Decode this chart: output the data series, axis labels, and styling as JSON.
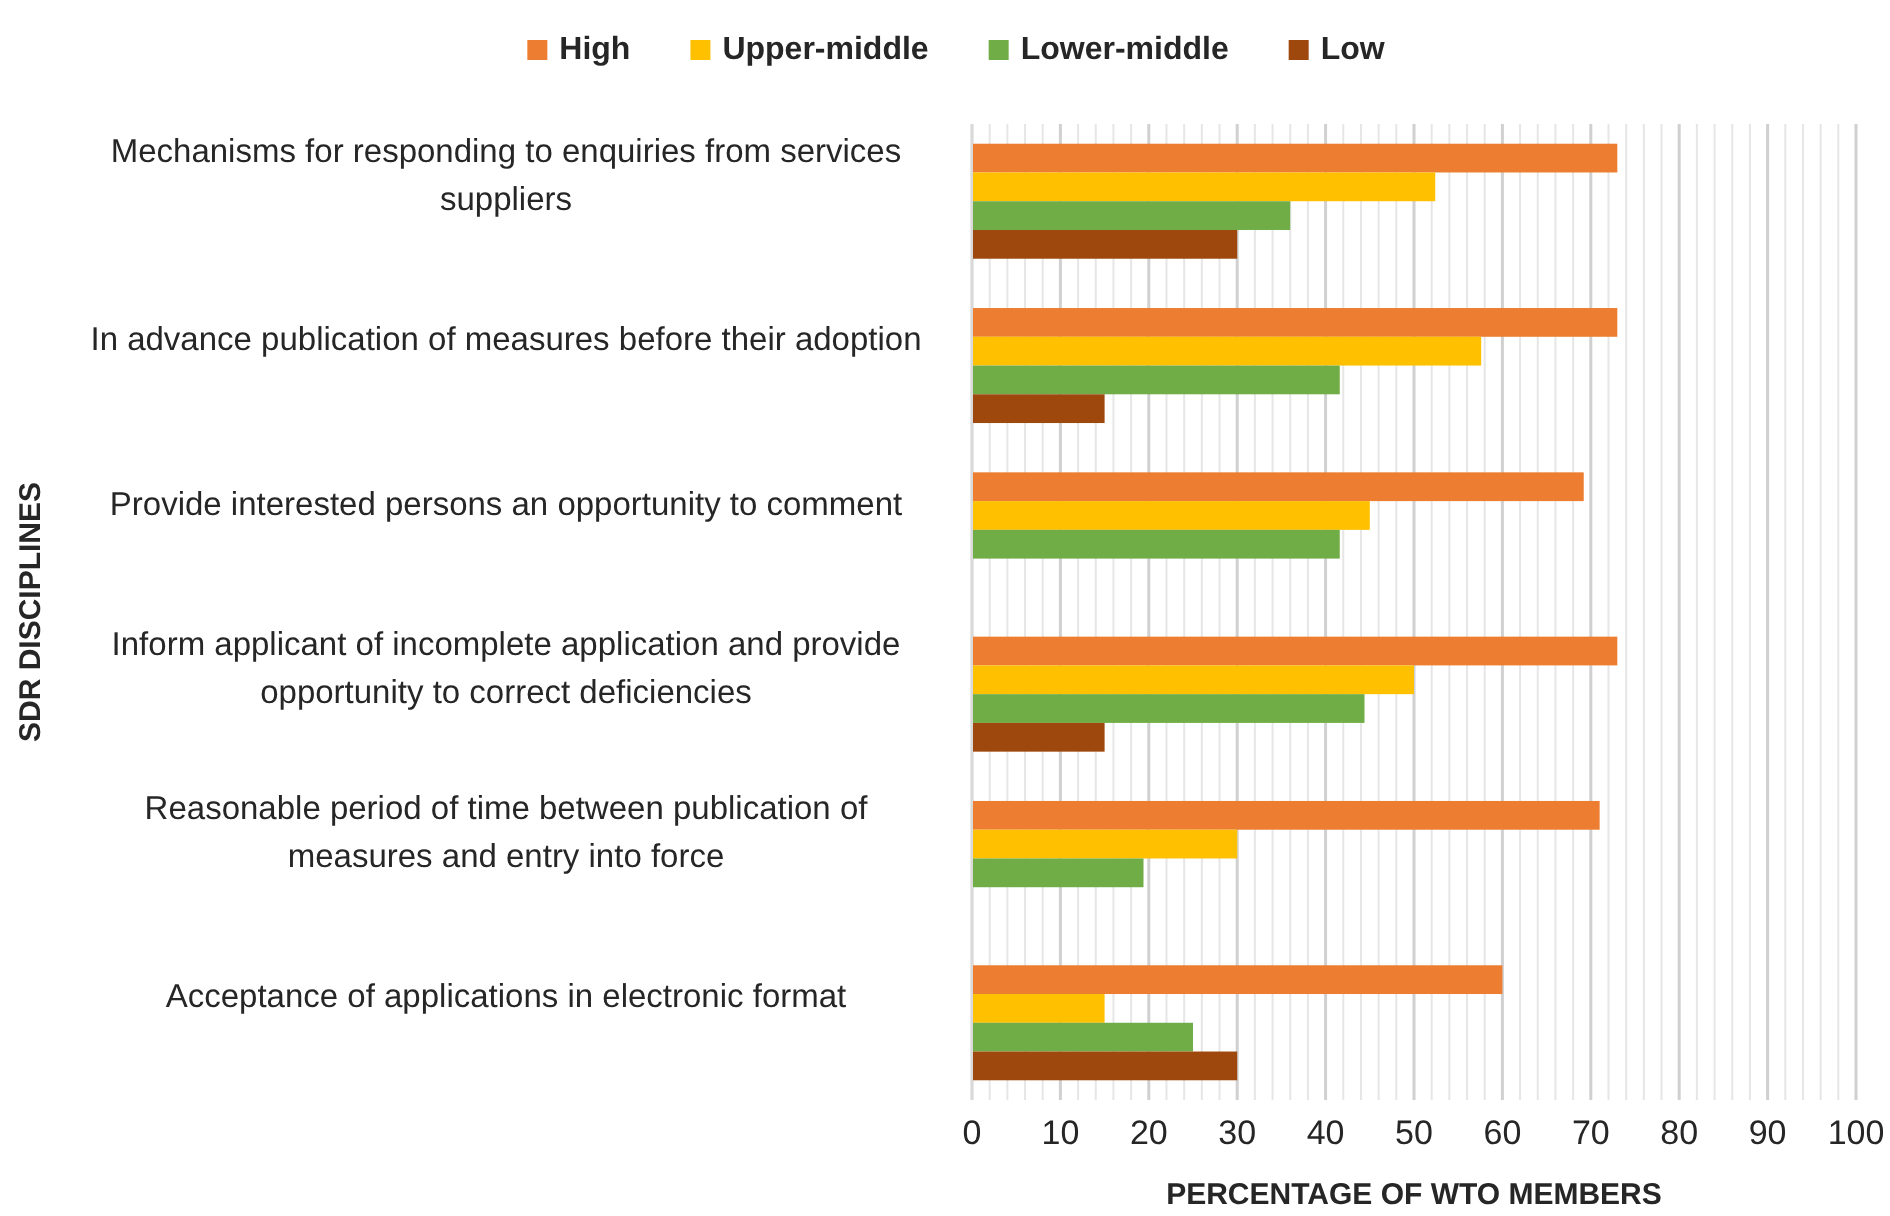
{
  "chart_data": {
    "type": "bar",
    "orientation": "horizontal",
    "xlabel": "PERCENTAGE OF WTO MEMBERS",
    "ylabel": "SDR DISCIPLINES",
    "categories": [
      "Mechanisms for responding to enquiries from services suppliers",
      "In advance publication of measures before their adoption",
      "Provide interested persons an opportunity to comment",
      "Inform applicant of incomplete application and provide opportunity to correct deficiencies",
      "Reasonable period of time between publication of measures and entry into force",
      "Acceptance of applications in electronic format"
    ],
    "series": [
      {
        "name": "High",
        "color": "#ed7d31",
        "values": [
          73,
          73,
          69.2,
          73,
          71,
          60
        ]
      },
      {
        "name": "Upper-middle",
        "color": "#ffc000",
        "values": [
          52.4,
          57.6,
          45,
          50,
          30,
          15
        ]
      },
      {
        "name": "Lower-middle",
        "color": "#70ad47",
        "values": [
          36,
          41.6,
          41.6,
          44.4,
          19.4,
          25
        ]
      },
      {
        "name": "Low",
        "color": "#9e480e",
        "values": [
          30,
          15,
          null,
          15,
          null,
          30
        ]
      }
    ],
    "xlim": [
      0,
      100
    ],
    "xticks": [
      0,
      {
        "value": 2,
        "label": null
      },
      {
        "value": 4,
        "label": null
      },
      {
        "value": 6,
        "label": null
      },
      {
        "value": 8,
        "label": null
      },
      10,
      {
        "value": 12,
        "label": null
      },
      {
        "value": 14,
        "label": null
      },
      {
        "value": 16,
        "label": null
      },
      {
        "value": 18,
        "label": null
      },
      20,
      {
        "value": 22,
        "label": null
      },
      {
        "value": 24,
        "label": null
      },
      {
        "value": 26,
        "label": null
      },
      {
        "value": 28,
        "label": null
      },
      30,
      {
        "value": 32,
        "label": null
      },
      {
        "value": 34,
        "label": null
      },
      {
        "value": 36,
        "label": null
      },
      {
        "value": 38,
        "label": null
      },
      40,
      {
        "value": 42,
        "label": null
      },
      {
        "value": 44,
        "label": null
      },
      {
        "value": 46,
        "label": null
      },
      {
        "value": 48,
        "label": null
      },
      50,
      {
        "value": 52,
        "label": null
      },
      {
        "value": 54,
        "label": null
      },
      {
        "value": 56,
        "label": null
      },
      {
        "value": 58,
        "label": null
      },
      60,
      {
        "value": 62,
        "label": null
      },
      {
        "value": 64,
        "label": null
      },
      {
        "value": 66,
        "label": null
      },
      {
        "value": 68,
        "label": null
      },
      70,
      {
        "value": 72,
        "label": null
      },
      {
        "value": 74,
        "label": null
      },
      {
        "value": 76,
        "label": null
      },
      {
        "value": 78,
        "label": null
      },
      80,
      {
        "value": 82,
        "label": null
      },
      {
        "value": 84,
        "label": null
      },
      {
        "value": 86,
        "label": null
      },
      {
        "value": 88,
        "label": null
      },
      90,
      {
        "value": 92,
        "label": null
      },
      {
        "value": 94,
        "label": null
      },
      {
        "value": 96,
        "label": null
      },
      {
        "value": 98,
        "label": null
      },
      100
    ],
    "grid": "x",
    "legend": "top"
  }
}
